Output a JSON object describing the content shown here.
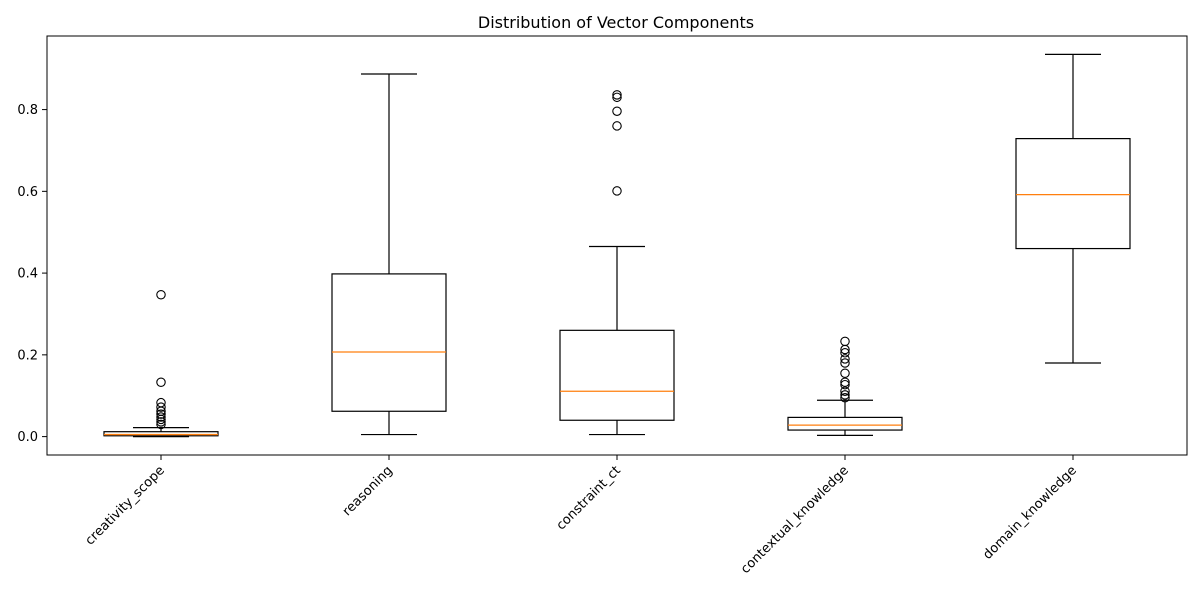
{
  "chart_data": {
    "type": "box",
    "title": "Distribution of Vector Components",
    "xlabel": "",
    "ylabel": "",
    "ylim": [
      -0.045,
      0.98
    ],
    "yticks": [
      0.0,
      0.2,
      0.4,
      0.6,
      0.8
    ],
    "ytick_labels": [
      "0.0",
      "0.2",
      "0.4",
      "0.6",
      "0.8"
    ],
    "grid": false,
    "categories": [
      "creativity_scope",
      "reasoning",
      "constraint_ct",
      "contextual_knowledge",
      "domain_knowledge"
    ],
    "boxes": [
      {
        "category": "creativity_scope",
        "whisker_low": 0.0,
        "q1": 0.002,
        "median": 0.005,
        "q3": 0.012,
        "whisker_high": 0.022,
        "outliers": [
          0.03,
          0.036,
          0.042,
          0.048,
          0.055,
          0.062,
          0.072,
          0.083,
          0.133,
          0.347
        ]
      },
      {
        "category": "reasoning",
        "whisker_low": 0.005,
        "q1": 0.062,
        "median": 0.207,
        "q3": 0.398,
        "whisker_high": 0.887,
        "outliers": []
      },
      {
        "category": "constraint_ct",
        "whisker_low": 0.005,
        "q1": 0.04,
        "median": 0.111,
        "q3": 0.26,
        "whisker_high": 0.465,
        "outliers": [
          0.601,
          0.76,
          0.796,
          0.83,
          0.836
        ]
      },
      {
        "category": "contextual_knowledge",
        "whisker_low": 0.003,
        "q1": 0.016,
        "median": 0.028,
        "q3": 0.047,
        "whisker_high": 0.089,
        "outliers": [
          0.095,
          0.102,
          0.111,
          0.127,
          0.133,
          0.155,
          0.18,
          0.19,
          0.205,
          0.213,
          0.233
        ]
      },
      {
        "category": "domain_knowledge",
        "whisker_low": 0.18,
        "q1": 0.46,
        "median": 0.592,
        "q3": 0.729,
        "whisker_high": 0.935,
        "outliers": []
      }
    ],
    "colors": {
      "box": "#000000",
      "median": "#ff7f0e",
      "outlier": "#000000",
      "background": "#ffffff"
    }
  }
}
